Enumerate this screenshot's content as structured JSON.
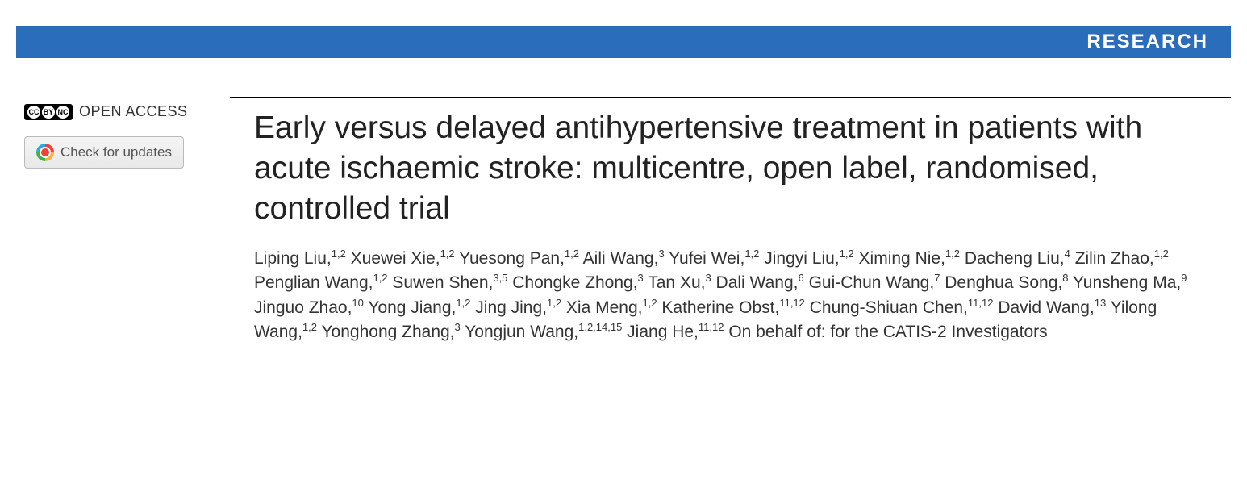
{
  "banner": {
    "label": "RESEARCH",
    "bg_color": "#2a6ebb",
    "text_color": "#ffffff"
  },
  "sidebar": {
    "open_access_label": "OPEN ACCESS",
    "cc_parts": [
      "CC",
      "BY",
      "NC"
    ],
    "check_updates_label": "Check for updates"
  },
  "article": {
    "title": "Early versus delayed antihypertensive treatment in patients with acute ischaemic stroke: multicentre, open label, randomised, controlled trial",
    "authors": [
      {
        "name": "Liping Liu",
        "affil": "1,2"
      },
      {
        "name": "Xuewei Xie",
        "affil": "1,2"
      },
      {
        "name": "Yuesong Pan",
        "affil": "1,2"
      },
      {
        "name": "Aili Wang",
        "affil": "3"
      },
      {
        "name": "Yufei Wei",
        "affil": "1,2"
      },
      {
        "name": "Jingyi Liu",
        "affil": "1,2"
      },
      {
        "name": "Ximing Nie",
        "affil": "1,2"
      },
      {
        "name": "Dacheng Liu",
        "affil": "4"
      },
      {
        "name": "Zilin Zhao",
        "affil": "1,2"
      },
      {
        "name": "Penglian Wang",
        "affil": "1,2"
      },
      {
        "name": "Suwen Shen",
        "affil": "3,5"
      },
      {
        "name": "Chongke Zhong",
        "affil": "3"
      },
      {
        "name": "Tan Xu",
        "affil": "3"
      },
      {
        "name": "Dali Wang",
        "affil": "6"
      },
      {
        "name": "Gui-Chun Wang",
        "affil": "7"
      },
      {
        "name": "Denghua Song",
        "affil": "8"
      },
      {
        "name": "Yunsheng Ma",
        "affil": "9"
      },
      {
        "name": "Jinguo Zhao",
        "affil": "10"
      },
      {
        "name": "Yong Jiang",
        "affil": "1,2"
      },
      {
        "name": "Jing Jing",
        "affil": "1,2"
      },
      {
        "name": "Xia Meng",
        "affil": "1,2"
      },
      {
        "name": "Katherine Obst",
        "affil": "11,12"
      },
      {
        "name": "Chung-Shiuan Chen",
        "affil": "11,12"
      },
      {
        "name": "David Wang",
        "affil": "13"
      },
      {
        "name": "Yilong Wang",
        "affil": "1,2"
      },
      {
        "name": "Yonghong Zhang",
        "affil": "3"
      },
      {
        "name": "Yongjun Wang",
        "affil": "1,2,14,15"
      },
      {
        "name": "Jiang He",
        "affil": "11,12"
      }
    ],
    "on_behalf": "On behalf of: for the CATIS-2 Investigators",
    "title_fontsize": 39,
    "author_fontsize": 21,
    "text_color": "#333333"
  }
}
